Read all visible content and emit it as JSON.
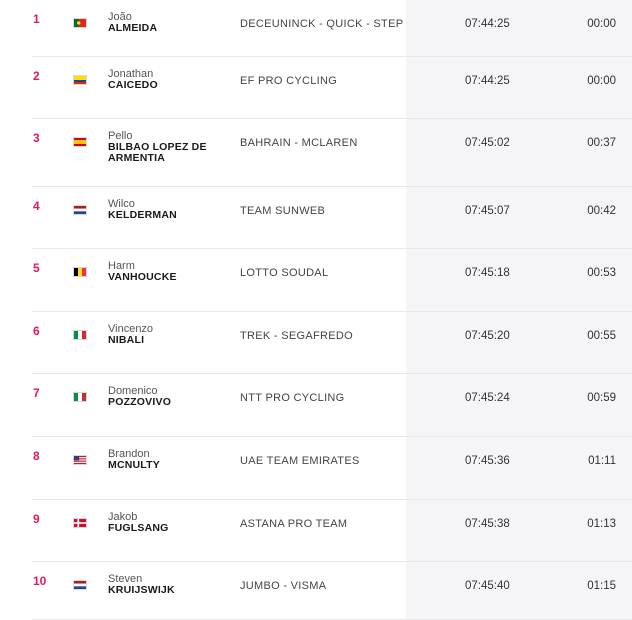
{
  "riders": [
    {
      "rank": "1",
      "first_name": "João",
      "last_name": "ALMEIDA",
      "team": "DECEUNINCK - QUICK - STEP",
      "time": "07:44:25",
      "gap": "00:00",
      "flag": "portugal-flag-icon"
    },
    {
      "rank": "2",
      "first_name": "Jonathan",
      "last_name": "CAICEDO",
      "team": "EF PRO CYCLING",
      "time": "07:44:25",
      "gap": "00:00",
      "flag": "ecuador-flag-icon"
    },
    {
      "rank": "3",
      "first_name": "Pello",
      "last_name": "BILBAO LOPEZ DE ARMENTIA",
      "team": "BAHRAIN - MCLAREN",
      "time": "07:45:02",
      "gap": "00:37",
      "flag": "spain-flag-icon"
    },
    {
      "rank": "4",
      "first_name": "Wilco",
      "last_name": "KELDERMAN",
      "team": "TEAM SUNWEB",
      "time": "07:45:07",
      "gap": "00:42",
      "flag": "netherlands-flag-icon"
    },
    {
      "rank": "5",
      "first_name": "Harm",
      "last_name": "VANHOUCKE",
      "team": "LOTTO SOUDAL",
      "time": "07:45:18",
      "gap": "00:53",
      "flag": "belgium-flag-icon"
    },
    {
      "rank": "6",
      "first_name": "Vincenzo",
      "last_name": "NIBALI",
      "team": "TREK - SEGAFREDO",
      "time": "07:45:20",
      "gap": "00:55",
      "flag": "italy-flag-icon"
    },
    {
      "rank": "7",
      "first_name": "Domenico",
      "last_name": "POZZOVIVO",
      "team": "NTT PRO CYCLING",
      "time": "07:45:24",
      "gap": "00:59",
      "flag": "italy-flag-icon"
    },
    {
      "rank": "8",
      "first_name": "Brandon",
      "last_name": "MCNULTY",
      "team": "UAE TEAM EMIRATES",
      "time": "07:45:36",
      "gap": "01:11",
      "flag": "usa-flag-icon"
    },
    {
      "rank": "9",
      "first_name": "Jakob",
      "last_name": "FUGLSANG",
      "team": "ASTANA PRO TEAM",
      "time": "07:45:38",
      "gap": "01:13",
      "flag": "denmark-flag-icon"
    },
    {
      "rank": "10",
      "first_name": "Steven",
      "last_name": "KRUIJSWIJK",
      "team": "JUMBO - VISMA",
      "time": "07:45:40",
      "gap": "01:15",
      "flag": "netherlands-flag-icon"
    }
  ],
  "colors": {
    "rank": "#e4185e",
    "time_column_bg": "#f5f5f8",
    "divider": "#e9e9ec"
  }
}
